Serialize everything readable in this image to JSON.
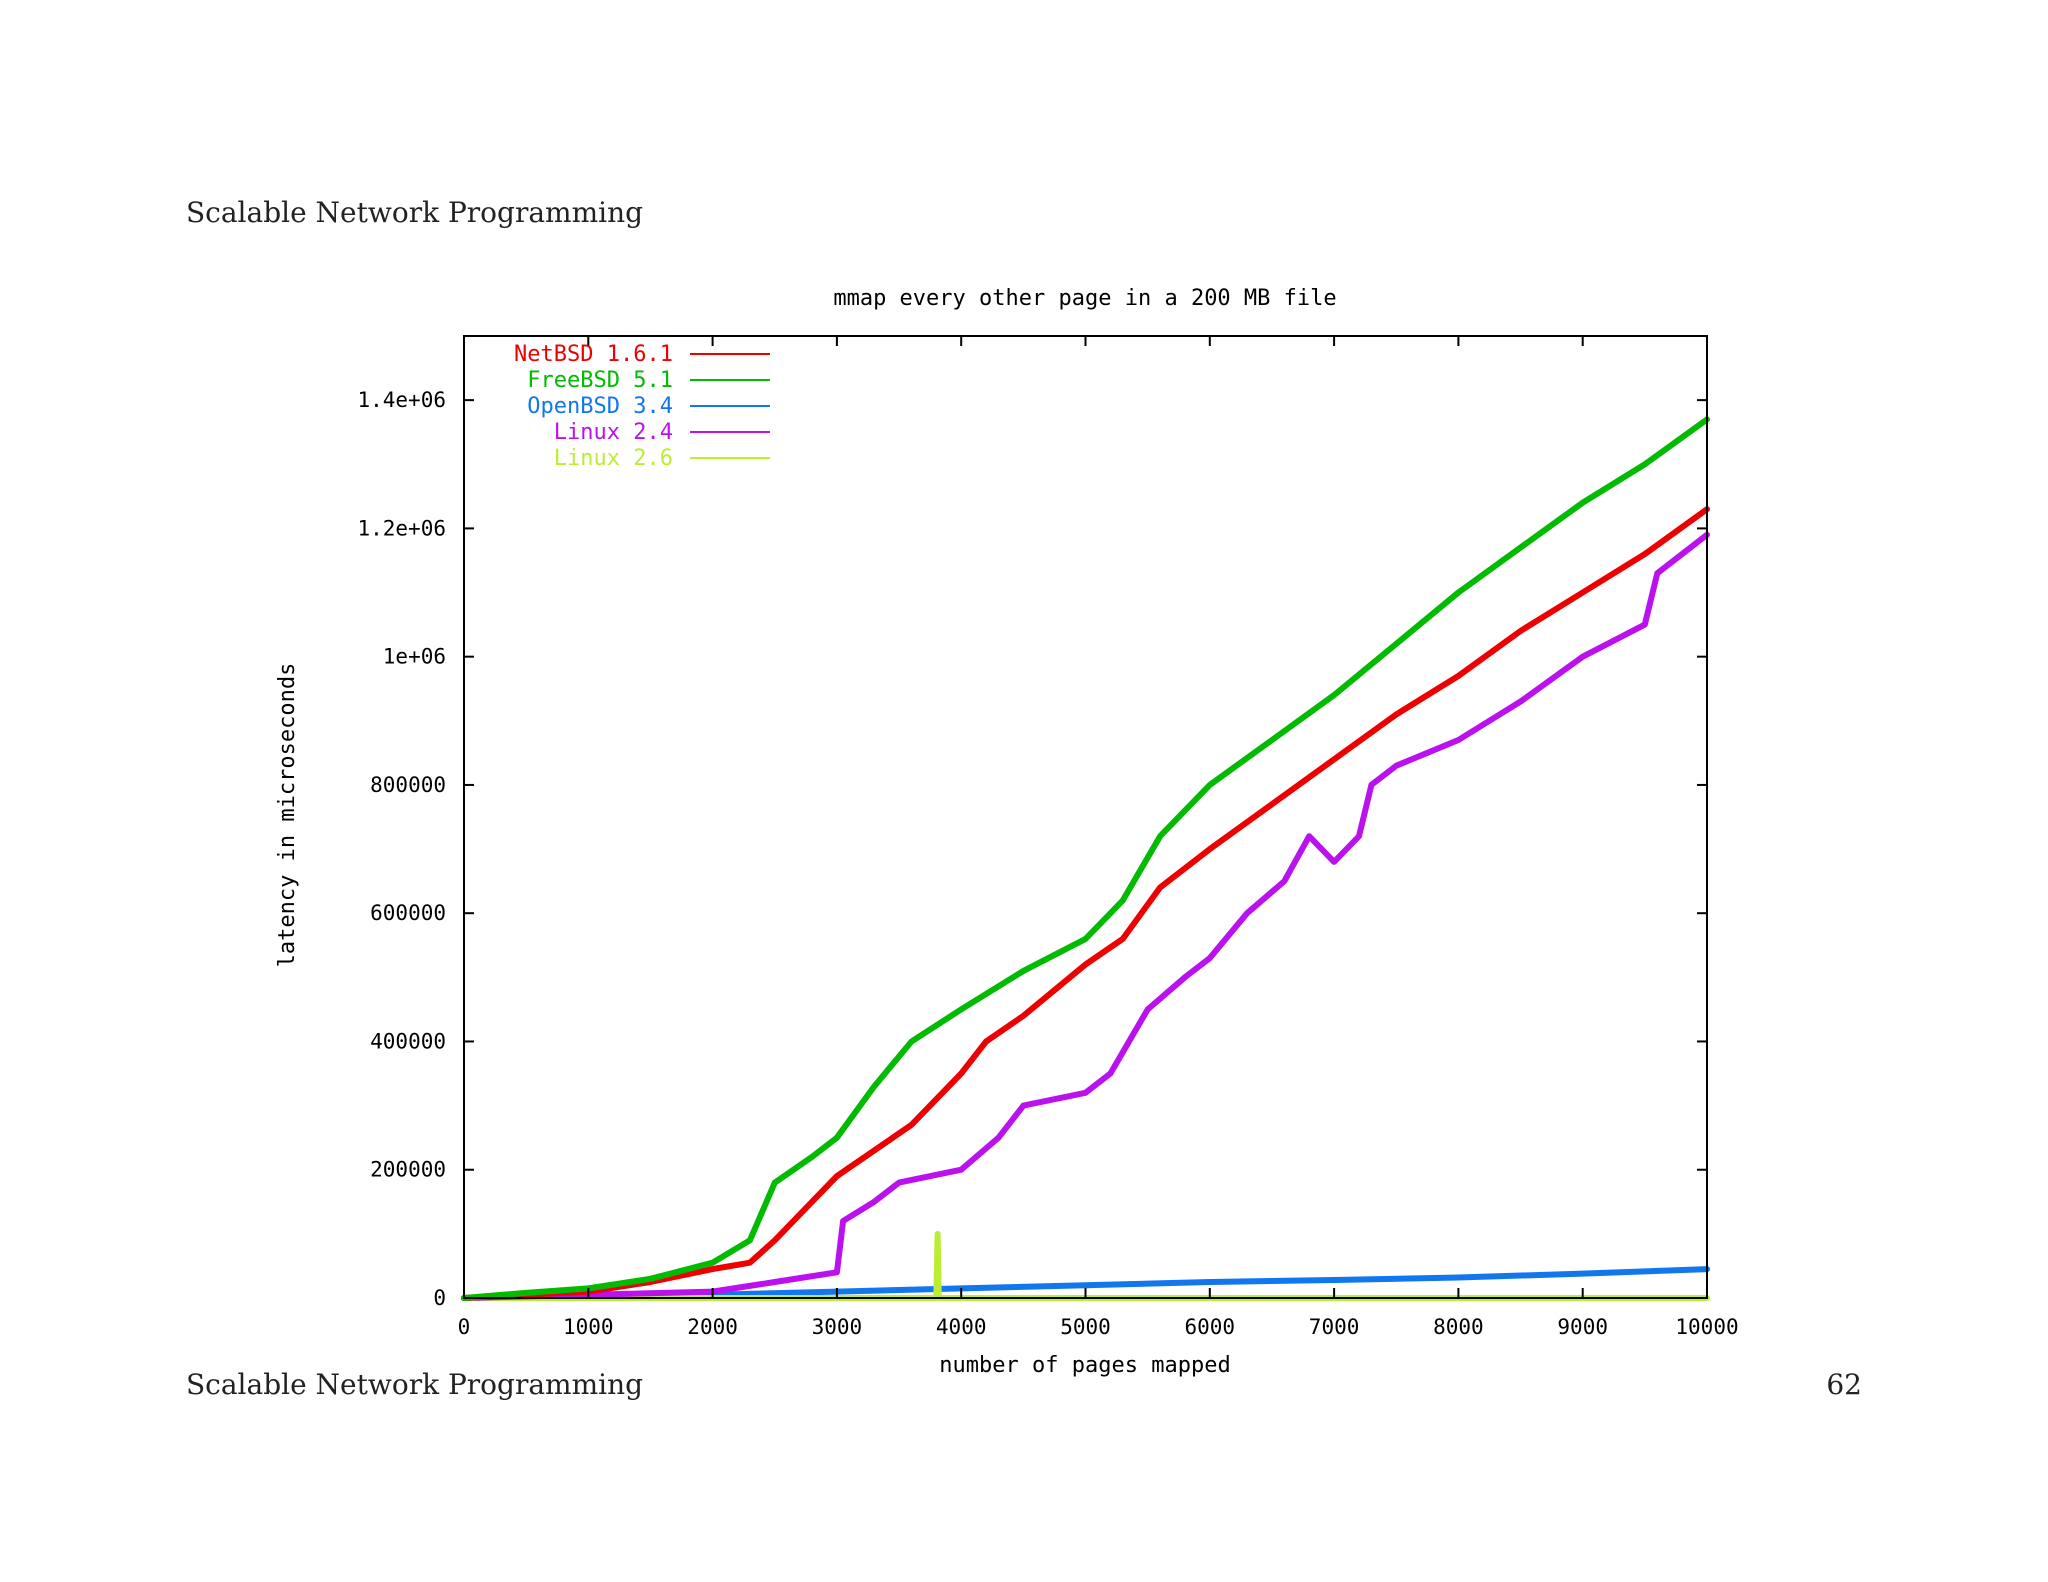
{
  "slide": {
    "header": "Scalable Network Programming",
    "footer": "Scalable Network Programming",
    "page_number": "62"
  },
  "colors": {
    "netbsd": "#ee0000",
    "freebsd": "#00bb00",
    "openbsd": "#1177ee",
    "linux24": "#bb11ee",
    "linux26": "#bbee33",
    "axis": "#000000"
  },
  "chart_data": {
    "type": "line",
    "title": "mmap every other page in a 200 MB file",
    "xlabel": "number of pages mapped",
    "ylabel": "latency in microseconds",
    "xlim": [
      0,
      10000
    ],
    "ylim": [
      0,
      1500000
    ],
    "xticks": [
      {
        "value": 0,
        "label": "0"
      },
      {
        "value": 1000,
        "label": "1000"
      },
      {
        "value": 2000,
        "label": "2000"
      },
      {
        "value": 3000,
        "label": "3000"
      },
      {
        "value": 4000,
        "label": "4000"
      },
      {
        "value": 5000,
        "label": "5000"
      },
      {
        "value": 6000,
        "label": "6000"
      },
      {
        "value": 7000,
        "label": "7000"
      },
      {
        "value": 8000,
        "label": "8000"
      },
      {
        "value": 9000,
        "label": "9000"
      },
      {
        "value": 10000,
        "label": "10000"
      }
    ],
    "yticks": [
      {
        "value": 0,
        "label": "0"
      },
      {
        "value": 200000,
        "label": "200000"
      },
      {
        "value": 400000,
        "label": "400000"
      },
      {
        "value": 600000,
        "label": "600000"
      },
      {
        "value": 800000,
        "label": "800000"
      },
      {
        "value": 1000000,
        "label": "1e+06"
      },
      {
        "value": 1200000,
        "label": "1.2e+06"
      },
      {
        "value": 1400000,
        "label": "1.4e+06"
      }
    ],
    "legend_position": "top-left",
    "series": [
      {
        "name": "NetBSD 1.6.1",
        "color_key": "netbsd",
        "x": [
          0,
          500,
          1000,
          1500,
          2000,
          2300,
          2500,
          2800,
          3000,
          3300,
          3600,
          4000,
          4200,
          4500,
          5000,
          5300,
          5600,
          6000,
          6500,
          7000,
          7500,
          8000,
          8500,
          9000,
          9500,
          10000
        ],
        "y": [
          0,
          5000,
          10000,
          25000,
          45000,
          55000,
          90000,
          150000,
          190000,
          230000,
          270000,
          350000,
          400000,
          440000,
          520000,
          560000,
          640000,
          700000,
          770000,
          840000,
          910000,
          970000,
          1040000,
          1100000,
          1160000,
          1230000
        ]
      },
      {
        "name": "FreeBSD 5.1",
        "color_key": "freebsd",
        "x": [
          0,
          500,
          1000,
          1500,
          2000,
          2300,
          2500,
          2800,
          3000,
          3300,
          3600,
          4000,
          4500,
          5000,
          5300,
          5600,
          6000,
          6500,
          7000,
          7500,
          8000,
          8500,
          9000,
          9500,
          10000
        ],
        "y": [
          0,
          8000,
          15000,
          30000,
          55000,
          90000,
          180000,
          220000,
          250000,
          330000,
          400000,
          450000,
          510000,
          560000,
          620000,
          720000,
          800000,
          870000,
          940000,
          1020000,
          1100000,
          1170000,
          1240000,
          1300000,
          1370000
        ]
      },
      {
        "name": "OpenBSD 3.4",
        "color_key": "openbsd",
        "x": [
          0,
          1000,
          2000,
          3000,
          4000,
          5000,
          6000,
          7000,
          8000,
          9000,
          10000
        ],
        "y": [
          0,
          2000,
          5000,
          10000,
          15000,
          20000,
          25000,
          28000,
          32000,
          38000,
          45000
        ]
      },
      {
        "name": "Linux 2.4",
        "color_key": "linux24",
        "x": [
          0,
          1000,
          2000,
          2500,
          3000,
          3050,
          3300,
          3500,
          4000,
          4300,
          4500,
          5000,
          5200,
          5500,
          5800,
          6000,
          6300,
          6600,
          6800,
          7000,
          7200,
          7300,
          7500,
          8000,
          8500,
          9000,
          9500,
          9600,
          10000
        ],
        "y": [
          0,
          5000,
          10000,
          25000,
          40000,
          120000,
          150000,
          180000,
          200000,
          250000,
          300000,
          320000,
          350000,
          450000,
          500000,
          530000,
          600000,
          650000,
          720000,
          680000,
          720000,
          800000,
          830000,
          870000,
          930000,
          1000000,
          1050000,
          1130000,
          1190000
        ]
      },
      {
        "name": "Linux 2.6",
        "color_key": "linux26",
        "x": [
          0,
          2000,
          3800,
          3810,
          3820,
          5000,
          10000
        ],
        "y": [
          0,
          0,
          0,
          100000,
          0,
          0,
          0
        ]
      }
    ]
  }
}
